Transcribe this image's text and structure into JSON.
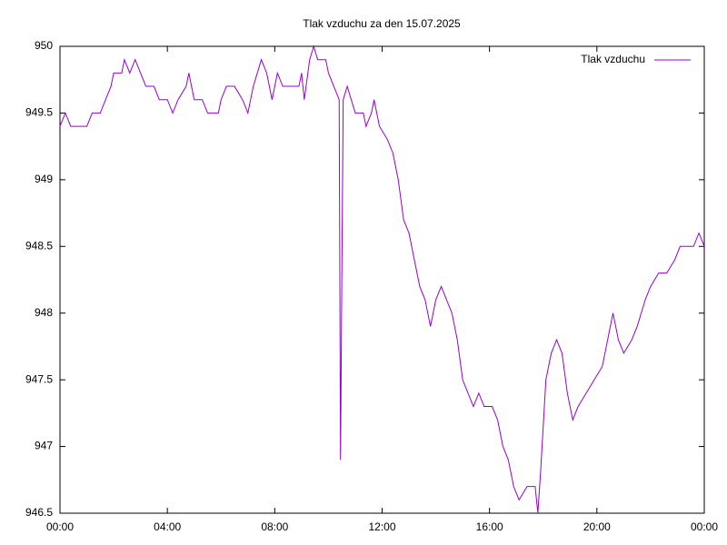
{
  "chart_data": {
    "type": "line",
    "title": "Tlak vzduchu za den 15.07.2025",
    "x": [
      0,
      0.2,
      0.4,
      1.0,
      1.2,
      1.5,
      1.7,
      1.9,
      2.0,
      2.3,
      2.4,
      2.6,
      2.8,
      3.0,
      3.2,
      3.5,
      3.7,
      4.0,
      4.2,
      4.4,
      4.7,
      4.8,
      5.0,
      5.3,
      5.5,
      5.9,
      6.0,
      6.2,
      6.5,
      6.8,
      7.0,
      7.2,
      7.5,
      7.7,
      7.9,
      8.1,
      8.3,
      8.6,
      8.9,
      9.0,
      9.1,
      9.3,
      9.45,
      9.6,
      9.9,
      10.0,
      10.2,
      10.4,
      10.45,
      10.5,
      10.55,
      10.7,
      11.0,
      11.3,
      11.4,
      11.6,
      11.7,
      11.9,
      12.2,
      12.4,
      12.6,
      12.8,
      13.0,
      13.2,
      13.4,
      13.6,
      13.8,
      14.0,
      14.2,
      14.4,
      14.6,
      14.8,
      15.0,
      15.2,
      15.4,
      15.6,
      15.8,
      16.1,
      16.3,
      16.5,
      16.7,
      16.9,
      17.1,
      17.4,
      17.7,
      17.8,
      17.9,
      18.1,
      18.3,
      18.5,
      18.7,
      18.9,
      19.1,
      19.3,
      19.6,
      19.9,
      20.2,
      20.4,
      20.6,
      20.8,
      21.0,
      21.3,
      21.5,
      21.8,
      22.0,
      22.3,
      22.6,
      22.9,
      23.1,
      23.3,
      23.6,
      23.8,
      24.0
    ],
    "series": [
      {
        "name": "Tlak vzduchu",
        "color": "#9400d3",
        "values": [
          949.4,
          949.5,
          949.4,
          949.4,
          949.5,
          949.5,
          949.6,
          949.7,
          949.8,
          949.8,
          949.9,
          949.8,
          949.9,
          949.8,
          949.7,
          949.7,
          949.6,
          949.6,
          949.5,
          949.6,
          949.7,
          949.8,
          949.6,
          949.6,
          949.5,
          949.5,
          949.6,
          949.7,
          949.7,
          949.6,
          949.5,
          949.7,
          949.9,
          949.8,
          949.6,
          949.8,
          949.7,
          949.7,
          949.7,
          949.8,
          949.6,
          949.9,
          950.0,
          949.9,
          949.9,
          949.8,
          949.7,
          949.6,
          946.9,
          948.3,
          949.6,
          949.7,
          949.5,
          949.5,
          949.4,
          949.5,
          949.6,
          949.4,
          949.3,
          949.2,
          949.0,
          948.7,
          948.6,
          948.4,
          948.2,
          948.1,
          947.9,
          948.1,
          948.2,
          948.1,
          948.0,
          947.8,
          947.5,
          947.4,
          947.3,
          947.4,
          947.3,
          947.3,
          947.2,
          947.0,
          946.9,
          946.7,
          946.6,
          946.7,
          946.7,
          946.5,
          946.8,
          947.5,
          947.7,
          947.8,
          947.7,
          947.4,
          947.2,
          947.3,
          947.4,
          947.5,
          947.6,
          947.8,
          948.0,
          947.8,
          947.7,
          947.8,
          947.9,
          948.1,
          948.2,
          948.3,
          948.3,
          948.4,
          948.5,
          948.5,
          948.5,
          948.6,
          948.5
        ]
      }
    ],
    "xlim": [
      0,
      24
    ],
    "xticks": [
      {
        "value": 0,
        "label": "00:00"
      },
      {
        "value": 4,
        "label": "04:00"
      },
      {
        "value": 8,
        "label": "08:00"
      },
      {
        "value": 12,
        "label": "12:00"
      },
      {
        "value": 16,
        "label": "16:00"
      },
      {
        "value": 20,
        "label": "20:00"
      },
      {
        "value": 24,
        "label": "00:00"
      }
    ],
    "ylim": [
      946.5,
      950
    ],
    "yticks": [
      946.5,
      947,
      947.5,
      948,
      948.5,
      949,
      949.5,
      950
    ],
    "grid": false,
    "legend": "top-right"
  }
}
